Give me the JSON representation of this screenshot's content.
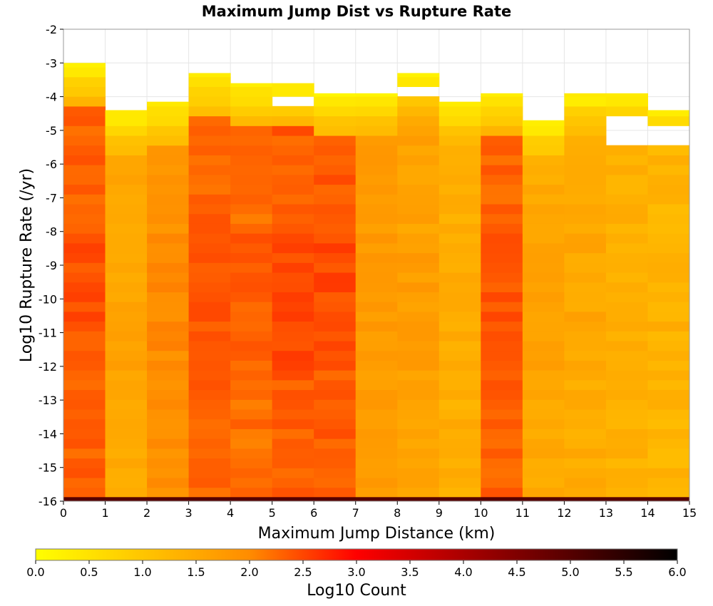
{
  "chart_data": {
    "type": "heatmap",
    "title": "Maximum Jump Dist vs Rupture Rate",
    "xlabel": "Maximum Jump Distance (km)",
    "ylabel": "Log10 Rupture Rate (/yr)",
    "xlim": [
      0,
      15
    ],
    "ylim": [
      -16,
      -2
    ],
    "x_ticks": [
      "0",
      "1",
      "2",
      "3",
      "4",
      "5",
      "6",
      "7",
      "8",
      "9",
      "10",
      "11",
      "12",
      "13",
      "14",
      "15"
    ],
    "y_ticks": [
      "-2",
      "-3",
      "-4",
      "-5",
      "-6",
      "-7",
      "-8",
      "-9",
      "-10",
      "-11",
      "-12",
      "-13",
      "-14",
      "-15",
      "-16"
    ],
    "x_bin_width": 1,
    "y_bin_height": 0.29,
    "colorbar": {
      "label": "Log10 Count",
      "range": [
        0,
        6
      ],
      "ticks": [
        "0.0",
        "0.5",
        "1.0",
        "1.5",
        "2.0",
        "2.5",
        "3.0",
        "3.5",
        "4.0",
        "4.5",
        "5.0",
        "5.5",
        "6.0"
      ],
      "stops": [
        "#ffff00",
        "#ff8c00",
        "#ff0000",
        "#000000"
      ],
      "stop_positions": [
        0,
        0.333,
        0.5,
        1.0
      ]
    },
    "columns": [
      {
        "x": 0.5,
        "top": -3.0,
        "base": 2.3,
        "profile": "high",
        "seed": 1
      },
      {
        "x": 1.5,
        "top": -4.4,
        "base": 1.5,
        "profile": "mid",
        "seed": 2
      },
      {
        "x": 2.5,
        "top": -4.15,
        "base": 1.9,
        "profile": "mid",
        "seed": 3
      },
      {
        "x": 3.5,
        "top": -3.3,
        "base": 2.3,
        "profile": "high",
        "seed": 4
      },
      {
        "x": 4.5,
        "top": -3.6,
        "base": 2.2,
        "profile": "high",
        "seed": 5
      },
      {
        "x": 5.5,
        "top": -3.6,
        "base": 2.35,
        "profile": "high",
        "seed": 6
      },
      {
        "x": 6.5,
        "top": -3.9,
        "base": 2.35,
        "profile": "high",
        "seed": 7
      },
      {
        "x": 7.5,
        "top": -3.9,
        "base": 1.7,
        "profile": "mid",
        "seed": 8
      },
      {
        "x": 8.5,
        "top": -3.3,
        "base": 1.6,
        "profile": "mid",
        "seed": 9
      },
      {
        "x": 9.5,
        "top": -4.15,
        "base": 1.4,
        "profile": "mid",
        "seed": 10
      },
      {
        "x": 10.5,
        "top": -3.9,
        "base": 2.3,
        "profile": "high",
        "seed": 11
      },
      {
        "x": 11.5,
        "top": -4.7,
        "base": 1.5,
        "profile": "mid",
        "seed": 12
      },
      {
        "x": 12.5,
        "top": -3.9,
        "base": 1.45,
        "profile": "mid",
        "seed": 13
      },
      {
        "x": 13.5,
        "top": -3.9,
        "base": 1.35,
        "profile": "low",
        "seed": 14
      },
      {
        "x": 14.5,
        "top": -4.4,
        "base": 1.3,
        "profile": "low",
        "seed": 15
      }
    ],
    "gaps": [
      {
        "x": 5.5,
        "from": -4.15,
        "to": -3.9
      },
      {
        "x": 8.5,
        "from": -3.9,
        "to": -3.6
      },
      {
        "x": 12.5,
        "from": -4.4,
        "to": -4.15
      },
      {
        "x": 13.5,
        "from": -5.3,
        "to": -4.7
      },
      {
        "x": 14.5,
        "from": -5.3,
        "to": -5.0
      }
    ],
    "bottom_band": {
      "y": -16,
      "value": 5.0
    }
  }
}
